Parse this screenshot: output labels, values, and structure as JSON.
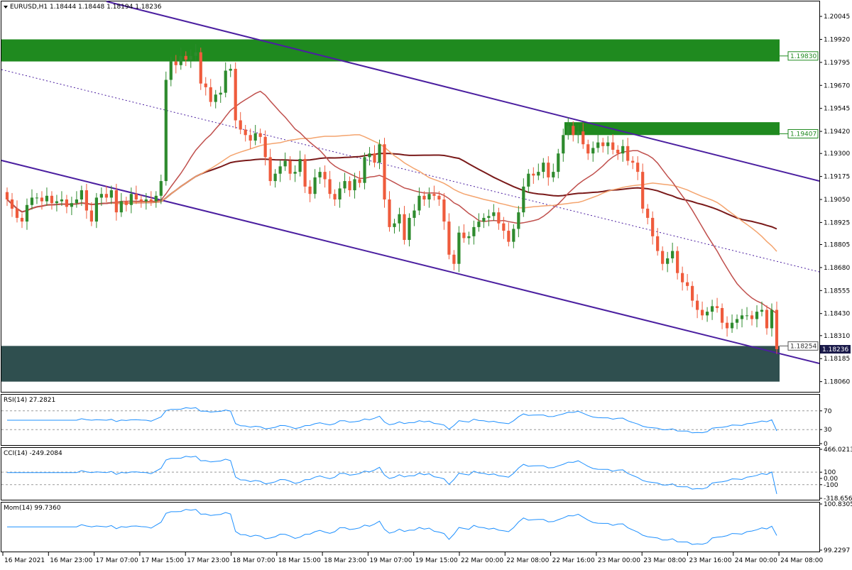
{
  "main_header": "EURUSD,H1  1.18444 1.18448 1.18194 1.18236",
  "rsi_header": "RSI(14) 27.2821",
  "cci_header": "CCI(14) -249.2084",
  "mom_header": "Mom(14) 99.7360",
  "colors": {
    "bull": "#2e8b2e",
    "bear": "#ef5b3c",
    "zone_green": "#1f8a1f",
    "zone_dark": "#2f4f4f",
    "channel": "#4b1fa0",
    "ma_dark": "#7a1a1a",
    "ma_light": "#f4a46e",
    "ma_mid": "#c0504d",
    "indicator": "#1e90ff"
  },
  "chart_data": [
    {
      "type": "candlestick",
      "symbol": "EURUSD",
      "timeframe": "H1",
      "y_ticks": [
        "1.20045",
        "1.19920",
        "1.19795",
        "1.19670",
        "1.19545",
        "1.19420",
        "1.19300",
        "1.19175",
        "1.19050",
        "1.18925",
        "1.18805",
        "1.18680",
        "1.18555",
        "1.18430",
        "1.18310",
        "1.18185",
        "1.18060"
      ],
      "ylim": [
        1.1802,
        1.2008
      ],
      "x_ticks": [
        "16 Mar 2021",
        "16 Mar 23:00",
        "17 Mar 07:00",
        "17 Mar 15:00",
        "17 Mar 23:00",
        "18 Mar 07:00",
        "18 Mar 15:00",
        "18 Mar 23:00",
        "19 Mar 07:00",
        "19 Mar 15:00",
        "22 Mar 00:00",
        "22 Mar 08:00",
        "22 Mar 16:00",
        "23 Mar 00:00",
        "23 Mar 08:00",
        "23 Mar 16:00",
        "24 Mar 00:00",
        "24 Mar 08:00"
      ],
      "current_price": "1.18236",
      "levels": [
        {
          "label": "1.19830",
          "value": 1.1983,
          "zone": [
            1.198,
            1.1992
          ]
        },
        {
          "label": "1.19407",
          "value": 1.19407,
          "zone": [
            1.194,
            1.1947
          ]
        },
        {
          "label": "1.18254",
          "value": 1.18254,
          "zone": [
            1.1806,
            1.18254
          ]
        }
      ],
      "closes": [
        1.1905,
        1.19,
        1.1895,
        1.1893,
        1.1902,
        1.1906,
        1.1906,
        1.1904,
        1.1907,
        1.1903,
        1.1904,
        1.1905,
        1.1901,
        1.1903,
        1.1905,
        1.191,
        1.1899,
        1.1893,
        1.1906,
        1.1908,
        1.1906,
        1.191,
        1.1898,
        1.1904,
        1.1902,
        1.1908,
        1.1905,
        1.1904,
        1.1905,
        1.1904,
        1.1907,
        1.1915,
        1.197,
        1.198,
        1.1978,
        1.1983,
        1.1981,
        1.1983,
        1.1985,
        1.1968,
        1.1966,
        1.1958,
        1.1962,
        1.1963,
        1.1975,
        1.1976,
        1.1948,
        1.1943,
        1.194,
        1.1937,
        1.1941,
        1.1939,
        1.1928,
        1.1915,
        1.1919,
        1.1923,
        1.1926,
        1.1919,
        1.192,
        1.1927,
        1.1912,
        1.1908,
        1.1917,
        1.192,
        1.1916,
        1.1908,
        1.1905,
        1.1911,
        1.1915,
        1.191,
        1.1916,
        1.1914,
        1.1928,
        1.193,
        1.1925,
        1.1935,
        1.1905,
        1.189,
        1.1892,
        1.1897,
        1.1883,
        1.1895,
        1.1899,
        1.1907,
        1.1905,
        1.1908,
        1.1907,
        1.1905,
        1.1893,
        1.1875,
        1.187,
        1.1887,
        1.1884,
        1.1885,
        1.189,
        1.1893,
        1.1895,
        1.1896,
        1.1898,
        1.1892,
        1.1888,
        1.1882,
        1.1889,
        1.1898,
        1.1912,
        1.1919,
        1.1918,
        1.192,
        1.1925,
        1.1917,
        1.192,
        1.193,
        1.194,
        1.1945,
        1.194,
        1.1942,
        1.1935,
        1.193,
        1.1933,
        1.1936,
        1.1934,
        1.1936,
        1.1932,
        1.193,
        1.1934,
        1.1926,
        1.1925,
        1.192,
        1.19,
        1.1895,
        1.1885,
        1.1877,
        1.187,
        1.1873,
        1.1877,
        1.1865,
        1.186,
        1.1858,
        1.185,
        1.1845,
        1.1842,
        1.1844,
        1.1847,
        1.1846,
        1.1838,
        1.1835,
        1.1838,
        1.184,
        1.1842,
        1.1842,
        1.184,
        1.1844,
        1.1845,
        1.1835,
        1.1845,
        1.18236
      ],
      "overlays": [
        "channel upper line",
        "channel lower line",
        "channel mid line (dotted)",
        "moving averages x3"
      ]
    },
    {
      "type": "line",
      "name": "RSI(14)",
      "y_ticks": [
        "70",
        "30",
        "0"
      ],
      "ylim": [
        0,
        100
      ],
      "levels": [
        70,
        30
      ],
      "last_value": 27.2821
    },
    {
      "type": "line",
      "name": "CCI(14)",
      "y_ticks": [
        "466.0213",
        "100",
        "0.00",
        "-100",
        "-318.6561"
      ],
      "ylim": [
        -318.6561,
        466.0213
      ],
      "levels": [
        100,
        -100
      ],
      "last_value": -249.2084
    },
    {
      "type": "line",
      "name": "Mom(14)",
      "y_ticks": [
        "100.8305",
        "99.2297"
      ],
      "ylim": [
        99.2297,
        100.8305
      ],
      "last_value": 99.736
    }
  ]
}
